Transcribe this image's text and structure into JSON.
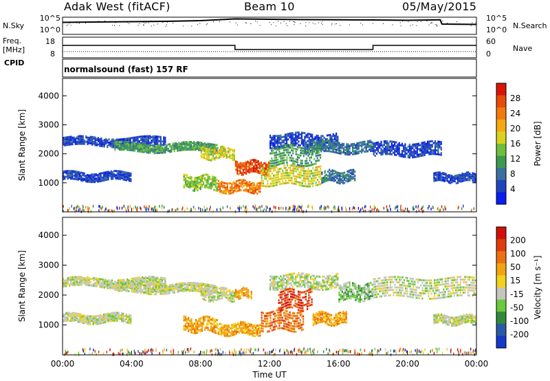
{
  "header": {
    "title": "Adak West (fitACF)",
    "beam": "Beam 10",
    "date": "05/May/2015"
  },
  "strip_labels": {
    "nsky": "N.Sky",
    "freq": "Freq.",
    "freq_unit": "[MHz]",
    "cpid": "CPID",
    "nsearch": "N.Search",
    "nave": "Nave",
    "cpid_text": "normalsound (fast) 157 RF"
  },
  "colors": {
    "power_scale": [
      "#0a1ef0",
      "#2244bb",
      "#3a70a0",
      "#3c9a4e",
      "#6fbf3c",
      "#d9d21e",
      "#f5a90f",
      "#f07a0a",
      "#e84a0a",
      "#d8140a"
    ],
    "velocity_scale": [
      "#1438c8",
      "#2a5aa6",
      "#2f8a3c",
      "#6cc83c",
      "#c6c6c0",
      "#f2d21c",
      "#f2a410",
      "#ec7010",
      "#e03c0a",
      "#d0100a"
    ]
  },
  "chart_data": [
    {
      "type": "line",
      "panel": "noise",
      "ylabel_left": "N.Sky",
      "ylabel_right": "N.Search",
      "y_ticks": [
        "10^5",
        "10^0"
      ],
      "series": [
        {
          "name": "N.Sky",
          "x": [
            0,
            2,
            4,
            6,
            8,
            9,
            10,
            12,
            14,
            16,
            18,
            20,
            21.9,
            22,
            24
          ],
          "values": [
            0.7,
            0.72,
            0.74,
            0.76,
            0.8,
            0.85,
            0.9,
            0.88,
            0.86,
            0.85,
            0.84,
            0.82,
            0.85,
            0.6,
            0.58
          ]
        }
      ]
    },
    {
      "type": "line",
      "panel": "frequency",
      "ylabel_left": "Freq. [MHz]",
      "ylabel_right": "Nave",
      "y_left_ticks": [
        "18",
        "8"
      ],
      "y_right_ticks": [
        "60",
        "0"
      ],
      "series": [
        {
          "name": "Freq.",
          "x": [
            0,
            10,
            10,
            18,
            18,
            24
          ],
          "values": [
            14,
            14,
            12,
            12,
            14,
            14
          ]
        }
      ]
    },
    {
      "type": "heatmap",
      "panel": "power",
      "xlabel": "",
      "ylabel": "Slant Range [km]",
      "colorbar_label": "Power [dB]",
      "colorbar_ticks": [
        "28",
        "24",
        "20",
        "16",
        "12",
        "8",
        "4"
      ],
      "x_ticks": [
        "00:00",
        "04:00",
        "08:00",
        "12:00",
        "16:00",
        "20:00",
        "00:00"
      ],
      "y_ticks": [
        "4000",
        "3000",
        "2000",
        "1000"
      ],
      "xlim": [
        0,
        24
      ],
      "ylim": [
        0,
        4600
      ],
      "bands": [
        {
          "t0": 0,
          "t1": 6,
          "r0": 2250,
          "r1": 2550,
          "level": 1
        },
        {
          "t0": 3,
          "t1": 9,
          "r0": 2050,
          "r1": 2350,
          "level": 3
        },
        {
          "t0": 8,
          "t1": 10,
          "r0": 1800,
          "r1": 2200,
          "level": 5
        },
        {
          "t0": 10,
          "t1": 12,
          "r0": 1300,
          "r1": 1750,
          "level": 8
        },
        {
          "t0": 12,
          "t1": 16,
          "r0": 2200,
          "r1": 2700,
          "level": 1
        },
        {
          "t0": 14,
          "t1": 18,
          "r0": 2000,
          "r1": 2400,
          "level": 2
        },
        {
          "t0": 18,
          "t1": 22,
          "r0": 1900,
          "r1": 2400,
          "level": 1
        },
        {
          "t0": 0,
          "t1": 4,
          "r0": 1050,
          "r1": 1350,
          "level": 1
        },
        {
          "t0": 7,
          "t1": 9,
          "r0": 750,
          "r1": 1250,
          "level": 4
        },
        {
          "t0": 9,
          "t1": 11.5,
          "r0": 650,
          "r1": 1050,
          "level": 7
        },
        {
          "t0": 11.5,
          "t1": 15,
          "r0": 900,
          "r1": 1600,
          "level": 5
        },
        {
          "t0": 12,
          "t1": 15,
          "r0": 1600,
          "r1": 2300,
          "level": 3
        },
        {
          "t0": 15,
          "t1": 17,
          "r0": 1000,
          "r1": 1400,
          "level": 2
        },
        {
          "t0": 21.5,
          "t1": 24,
          "r0": 1000,
          "r1": 1300,
          "level": 1
        }
      ]
    },
    {
      "type": "heatmap",
      "panel": "velocity",
      "xlabel": "Time UT",
      "ylabel": "Slant Range [km]",
      "colorbar_label": "Velocity [m s⁻¹]",
      "colorbar_ticks": [
        "200",
        "100",
        "50",
        "15",
        "-15",
        "-50",
        "-100",
        "-200"
      ],
      "x_ticks": [
        "00:00",
        "04:00",
        "08:00",
        "12:00",
        "16:00",
        "20:00",
        "00:00"
      ],
      "y_ticks": [
        "4000",
        "3000",
        "2000",
        "1000"
      ],
      "xlim": [
        0,
        24
      ],
      "ylim": [
        0,
        4600
      ],
      "bands": [
        {
          "t0": 0,
          "t1": 6,
          "r0": 2250,
          "r1": 2550,
          "level": 4
        },
        {
          "t0": 3,
          "t1": 9,
          "r0": 2050,
          "r1": 2350,
          "level": 4
        },
        {
          "t0": 8,
          "t1": 10,
          "r0": 1800,
          "r1": 2200,
          "level": 4
        },
        {
          "t0": 10,
          "t1": 11,
          "r0": 1900,
          "r1": 2200,
          "level": 6
        },
        {
          "t0": 12,
          "t1": 16,
          "r0": 2200,
          "r1": 2700,
          "level": 4
        },
        {
          "t0": 16,
          "t1": 18,
          "r0": 1800,
          "r1": 2400,
          "level": 3
        },
        {
          "t0": 18,
          "t1": 24,
          "r0": 1900,
          "r1": 2600,
          "level": 4
        },
        {
          "t0": 0,
          "t1": 4,
          "r0": 1050,
          "r1": 1350,
          "level": 4
        },
        {
          "t0": 7,
          "t1": 9,
          "r0": 750,
          "r1": 1250,
          "level": 6
        },
        {
          "t0": 9,
          "t1": 11.5,
          "r0": 650,
          "r1": 1050,
          "level": 6
        },
        {
          "t0": 11.5,
          "t1": 14,
          "r0": 800,
          "r1": 1500,
          "level": 7
        },
        {
          "t0": 12.5,
          "t1": 14.5,
          "r0": 1500,
          "r1": 2200,
          "level": 8
        },
        {
          "t0": 14.5,
          "t1": 16.5,
          "r0": 1000,
          "r1": 1400,
          "level": 6
        },
        {
          "t0": 21.5,
          "t1": 24,
          "r0": 1000,
          "r1": 1300,
          "level": 4
        }
      ]
    }
  ]
}
